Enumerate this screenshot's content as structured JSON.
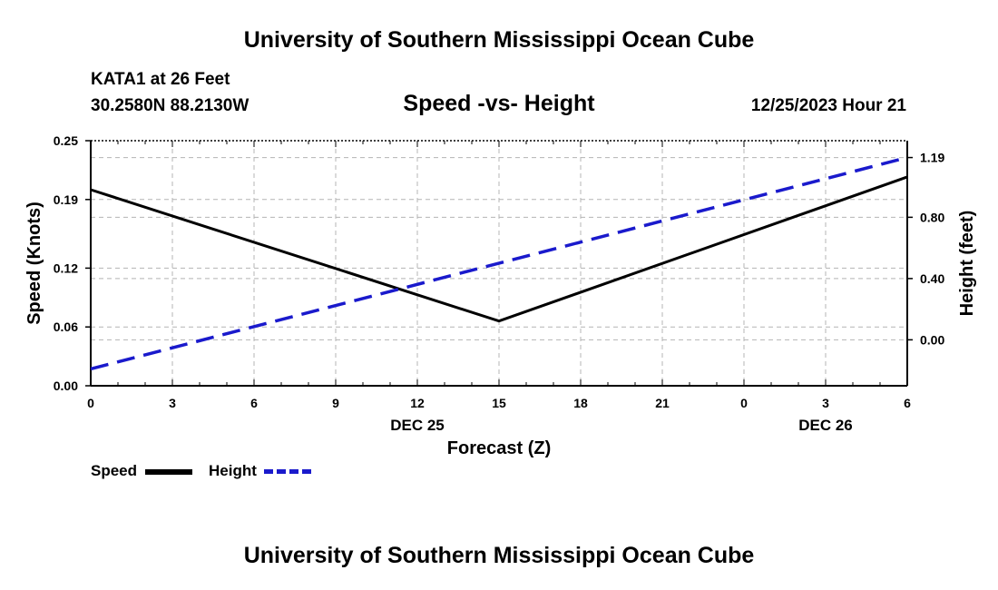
{
  "header": {
    "title": "University of Southern Mississippi Ocean Cube",
    "station": "KATA1 at 26 Feet",
    "coords": "30.2580N  88.2130W",
    "subtitle": "Speed -vs- Height",
    "datetime": "12/25/2023 Hour 21"
  },
  "footer": {
    "title": "University of Southern Mississippi Ocean Cube"
  },
  "legend": {
    "speed_label": "Speed",
    "height_label": "Height"
  },
  "colors": {
    "speed": "#000000",
    "height": "#1a1acc",
    "grid": "#b4b4b4"
  },
  "chart_data": {
    "type": "line",
    "title": "Speed -vs- Height",
    "xlabel": "Forecast (Z)",
    "ylabel": "Speed (Knots)",
    "y2label": "Height (feet)",
    "x_hours": [
      0,
      3,
      6,
      9,
      12,
      15,
      18,
      21,
      24,
      27,
      30
    ],
    "x_tick_labels": [
      "0",
      "3",
      "6",
      "9",
      "12",
      "15",
      "18",
      "21",
      "0",
      "3",
      "6"
    ],
    "date_labels": [
      {
        "hour": 12,
        "label": "DEC 25"
      },
      {
        "hour": 27,
        "label": "DEC 26"
      }
    ],
    "xlim": [
      0,
      30
    ],
    "ylim": [
      0,
      0.25
    ],
    "y_ticks": [
      0.0,
      0.06,
      0.12,
      0.19,
      0.25
    ],
    "y_tick_labels": [
      "0.00",
      "0.06",
      "0.12",
      "0.19",
      "0.25"
    ],
    "y2lim": [
      -0.3,
      1.3
    ],
    "y2_ticks": [
      0.0,
      0.4,
      0.8,
      1.19
    ],
    "y2_tick_labels": [
      "0.00",
      "0.40",
      "0.80",
      "1.19"
    ],
    "series": [
      {
        "name": "Speed",
        "axis": "left",
        "style": "solid",
        "x": [
          0,
          15,
          30
        ],
        "values": [
          0.2,
          0.066,
          0.213
        ]
      },
      {
        "name": "Height",
        "axis": "right",
        "style": "dashed",
        "x": [
          0,
          30
        ],
        "values": [
          -0.19,
          1.19
        ]
      }
    ]
  }
}
